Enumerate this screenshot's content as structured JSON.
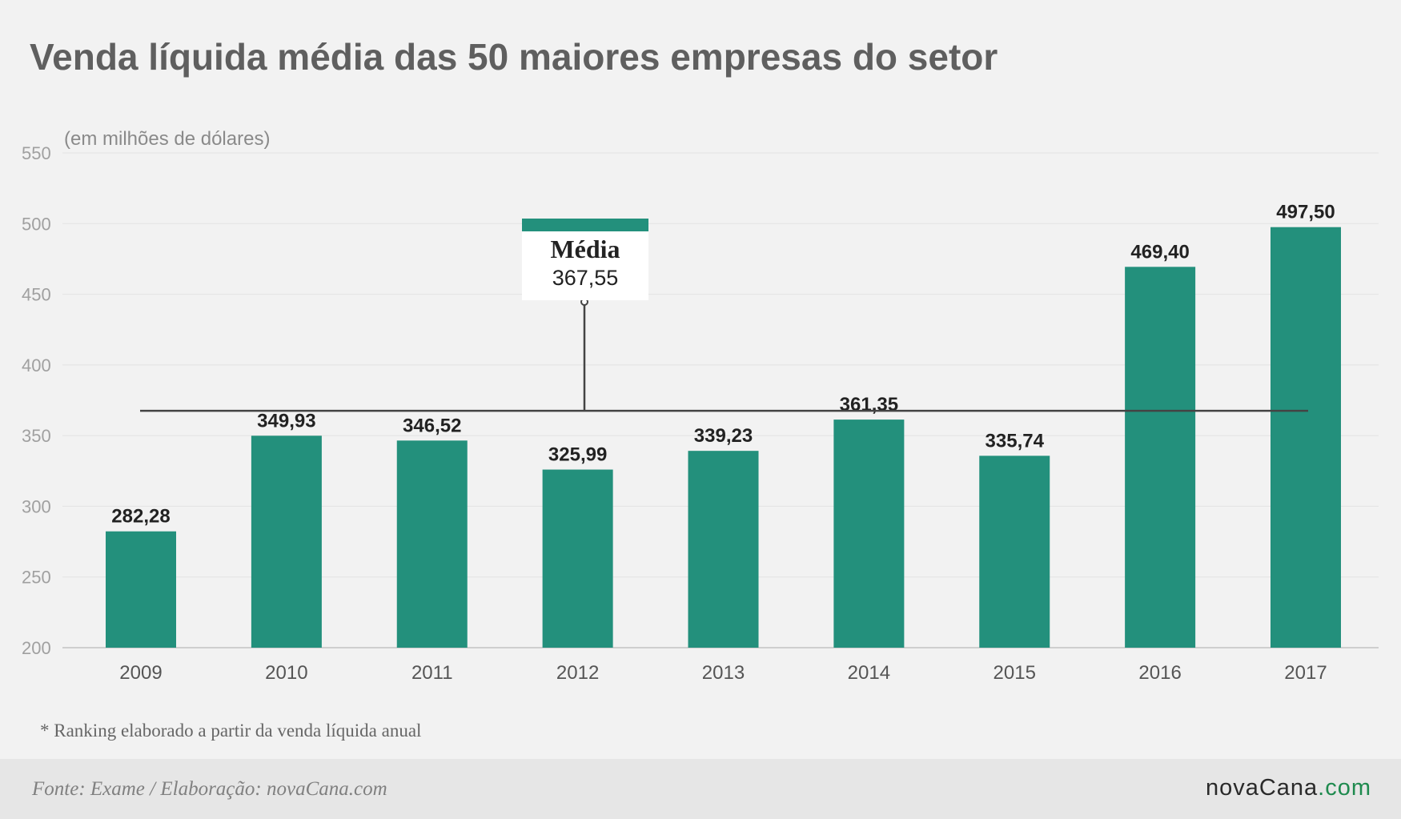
{
  "title": "Venda líquida média das 50 maiores empresas do setor",
  "unit_label": "(em milhões de dólares)",
  "note": "* Ranking elaborado a partir da venda líquida anual",
  "footer": {
    "source": "Fonte: Exame / Elaboração: novaCana.com",
    "logo_main": "novaCana",
    "logo_domain": ".com"
  },
  "colors": {
    "bar": "#23907c",
    "average_line": "#444444",
    "tick_text": "#a0a0a0",
    "category_text": "#555555",
    "value_text": "#222222"
  },
  "chart_data": {
    "type": "bar",
    "title": "Venda líquida média das 50 maiores empresas do setor",
    "ylabel": "(em milhões de dólares)",
    "xlabel": "",
    "categories": [
      "2009",
      "2010",
      "2011",
      "2012",
      "2013",
      "2014",
      "2015",
      "2016",
      "2017"
    ],
    "values": [
      282.28,
      349.93,
      346.52,
      325.99,
      339.23,
      361.35,
      335.74,
      469.4,
      497.5
    ],
    "value_labels": [
      "282,28",
      "349,93",
      "346,52",
      "325,99",
      "339,23",
      "361,35",
      "335,74",
      "469,40",
      "497,50"
    ],
    "ylim": [
      200,
      550
    ],
    "yticks": [
      200,
      250,
      300,
      350,
      400,
      450,
      500,
      550
    ],
    "grid": true,
    "average": {
      "label": "Média",
      "value": 367.55,
      "value_label": "367,55"
    }
  }
}
